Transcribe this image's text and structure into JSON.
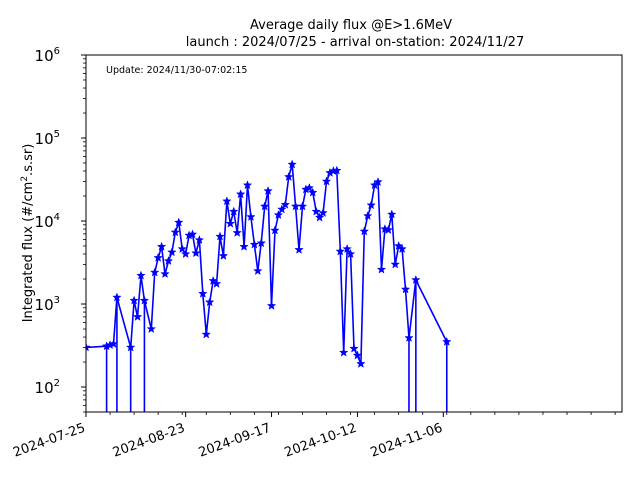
{
  "chart_data": {
    "type": "line",
    "title_line1": "Average daily flux @E>1.6MeV",
    "title_line2": "launch : 2024/07/25 - arrival on-station: 2024/11/27",
    "ylabel": "Integrated flux (#/cm",
    "ylabel_sup": "2",
    "ylabel_tail": ".s.sr)",
    "annotation": "Update: 2024/11/30-07:02:15",
    "yscale": "log",
    "ylim": [
      50,
      1000000
    ],
    "xlim": [
      "2024-07-25",
      "2024-12-28"
    ],
    "grid": false,
    "xticks": [
      {
        "label": "2024-07-25",
        "date": "2024-07-25"
      },
      {
        "label": "2024-08-23",
        "date": "2024-08-23"
      },
      {
        "label": "2024-09-17",
        "date": "2024-09-17"
      },
      {
        "label": "2024-10-12",
        "date": "2024-10-12"
      },
      {
        "label": "2024-11-06",
        "date": "2024-11-06"
      }
    ],
    "yticks": [
      {
        "base": "10",
        "exp": "2",
        "value": 100
      },
      {
        "base": "10",
        "exp": "3",
        "value": 1000
      },
      {
        "base": "10",
        "exp": "4",
        "value": 10000
      },
      {
        "base": "10",
        "exp": "5",
        "value": 100000
      },
      {
        "base": "10",
        "exp": "6",
        "value": 1000000
      }
    ],
    "color": "#0000ff",
    "series": [
      {
        "points": [
          [
            "2024-07-25",
            300
          ],
          [
            "2024-07-31",
            310
          ],
          [
            "2024-08-01",
            320
          ],
          [
            "2024-08-02",
            330
          ],
          [
            "2024-08-03",
            1200
          ],
          [
            "2024-08-07",
            300
          ],
          [
            "2024-08-08",
            1100
          ],
          [
            "2024-08-09",
            700
          ],
          [
            "2024-08-10",
            2200
          ],
          [
            "2024-08-11",
            1100
          ],
          [
            "2024-08-13",
            500
          ],
          [
            "2024-08-14",
            2400
          ],
          [
            "2024-08-15",
            3600
          ],
          [
            "2024-08-16",
            4900
          ],
          [
            "2024-08-17",
            2300
          ],
          [
            "2024-08-18",
            3300
          ],
          [
            "2024-08-19",
            4200
          ],
          [
            "2024-08-20",
            7300
          ],
          [
            "2024-08-21",
            9600
          ],
          [
            "2024-08-22",
            4600
          ],
          [
            "2024-08-23",
            4000
          ],
          [
            "2024-08-24",
            6700
          ],
          [
            "2024-08-25",
            6900
          ],
          [
            "2024-08-26",
            4100
          ],
          [
            "2024-08-27",
            5900
          ],
          [
            "2024-08-28",
            1330
          ],
          [
            "2024-08-29",
            430
          ],
          [
            "2024-08-30",
            1050
          ],
          [
            "2024-08-31",
            1900
          ],
          [
            "2024-09-01",
            1750
          ],
          [
            "2024-09-02",
            6500
          ],
          [
            "2024-09-03",
            3800
          ],
          [
            "2024-09-04",
            17300
          ],
          [
            "2024-09-05",
            9300
          ],
          [
            "2024-09-06",
            13000
          ],
          [
            "2024-09-07",
            7200
          ],
          [
            "2024-09-08",
            21000
          ],
          [
            "2024-09-09",
            4900
          ],
          [
            "2024-09-10",
            27000
          ],
          [
            "2024-09-11",
            11200
          ],
          [
            "2024-09-12",
            5200
          ],
          [
            "2024-09-13",
            2500
          ],
          [
            "2024-09-14",
            5400
          ],
          [
            "2024-09-15",
            15000
          ],
          [
            "2024-09-16",
            23000
          ],
          [
            "2024-09-17",
            950
          ],
          [
            "2024-09-18",
            7700
          ],
          [
            "2024-09-19",
            11800
          ],
          [
            "2024-09-20",
            13800
          ],
          [
            "2024-09-21",
            15700
          ],
          [
            "2024-09-22",
            34000
          ],
          [
            "2024-09-23",
            48000
          ],
          [
            "2024-09-24",
            15000
          ],
          [
            "2024-09-25",
            4500
          ],
          [
            "2024-09-26",
            15000
          ],
          [
            "2024-09-27",
            24000
          ],
          [
            "2024-09-28",
            25000
          ],
          [
            "2024-09-29",
            22000
          ],
          [
            "2024-09-30",
            13000
          ],
          [
            "2024-10-01",
            11000
          ],
          [
            "2024-10-02",
            12500
          ],
          [
            "2024-10-03",
            30000
          ],
          [
            "2024-10-04",
            38000
          ],
          [
            "2024-10-05",
            40000
          ],
          [
            "2024-10-06",
            40500
          ],
          [
            "2024-10-07",
            4300
          ],
          [
            "2024-10-08",
            260
          ],
          [
            "2024-10-09",
            4600
          ],
          [
            "2024-10-10",
            4000
          ],
          [
            "2024-10-11",
            290
          ],
          [
            "2024-10-12",
            240
          ],
          [
            "2024-10-13",
            190
          ],
          [
            "2024-10-14",
            7500
          ],
          [
            "2024-10-15",
            11500
          ],
          [
            "2024-10-16",
            15500
          ],
          [
            "2024-10-17",
            27000
          ],
          [
            "2024-10-18",
            29500
          ],
          [
            "2024-10-19",
            2600
          ],
          [
            "2024-10-20",
            8000
          ],
          [
            "2024-10-21",
            7800
          ],
          [
            "2024-10-22",
            12000
          ],
          [
            "2024-10-23",
            3000
          ],
          [
            "2024-10-24",
            5000
          ],
          [
            "2024-10-25",
            4600
          ],
          [
            "2024-10-26",
            1500
          ],
          [
            "2024-10-27",
            390
          ],
          [
            "2024-10-29",
            1950
          ],
          [
            "2024-11-07",
            350
          ]
        ],
        "drops": [
          "2024-07-31",
          "2024-08-03",
          "2024-08-07",
          "2024-08-11",
          "2024-10-27",
          "2024-10-29",
          "2024-11-07"
        ]
      }
    ]
  }
}
